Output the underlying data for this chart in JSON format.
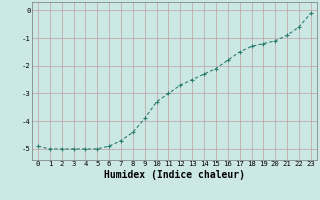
{
  "x": [
    0,
    1,
    2,
    3,
    4,
    5,
    6,
    7,
    8,
    9,
    10,
    11,
    12,
    13,
    14,
    15,
    16,
    17,
    18,
    19,
    20,
    21,
    22,
    23
  ],
  "y": [
    -4.9,
    -5.0,
    -5.0,
    -5.0,
    -5.0,
    -5.0,
    -4.9,
    -4.7,
    -4.4,
    -3.9,
    -3.3,
    -3.0,
    -2.7,
    -2.5,
    -2.3,
    -2.1,
    -1.8,
    -1.5,
    -1.3,
    -1.2,
    -1.1,
    -0.9,
    -0.6,
    -0.1
  ],
  "line_color": "#2d7d6e",
  "marker": "+",
  "marker_size": 3.5,
  "marker_edge_width": 0.8,
  "background_color": "#cce8e4",
  "grid_color": "#c0a0a0",
  "xlabel": "Humidex (Indice chaleur)",
  "ylabel": "",
  "ylim": [
    -5.4,
    0.3
  ],
  "xlim": [
    -0.5,
    23.5
  ],
  "yticks": [
    0,
    -1,
    -2,
    -3,
    -4,
    -5
  ],
  "xticks": [
    0,
    1,
    2,
    3,
    4,
    5,
    6,
    7,
    8,
    9,
    10,
    11,
    12,
    13,
    14,
    15,
    16,
    17,
    18,
    19,
    20,
    21,
    22,
    23
  ],
  "tick_fontsize": 5.2,
  "xlabel_fontsize": 7.0,
  "line_width": 0.8
}
